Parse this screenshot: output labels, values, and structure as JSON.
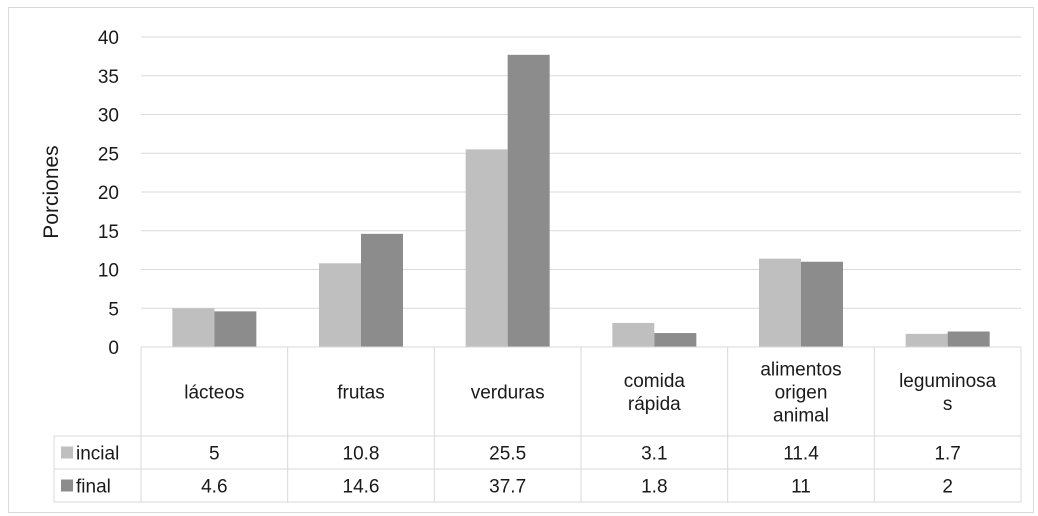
{
  "chart_data": {
    "type": "bar",
    "ylabel": "Porciones",
    "ylim": [
      0,
      40
    ],
    "yticks": [
      0,
      5,
      10,
      15,
      20,
      25,
      30,
      35,
      40
    ],
    "grid": true,
    "legend": "table-left",
    "categories": [
      [
        "lácteos"
      ],
      [
        "frutas"
      ],
      [
        "verduras"
      ],
      [
        "comida",
        "rápida"
      ],
      [
        "alimentos",
        "origen",
        "animal"
      ],
      [
        "leguminosa",
        "s"
      ]
    ],
    "series": [
      {
        "name": "incial",
        "color": "#bfbfbf",
        "values": [
          5,
          10.8,
          25.5,
          3.1,
          11.4,
          1.7
        ]
      },
      {
        "name": "final",
        "color": "#8c8c8c",
        "values": [
          4.6,
          14.6,
          37.7,
          1.8,
          11,
          2
        ]
      }
    ]
  }
}
